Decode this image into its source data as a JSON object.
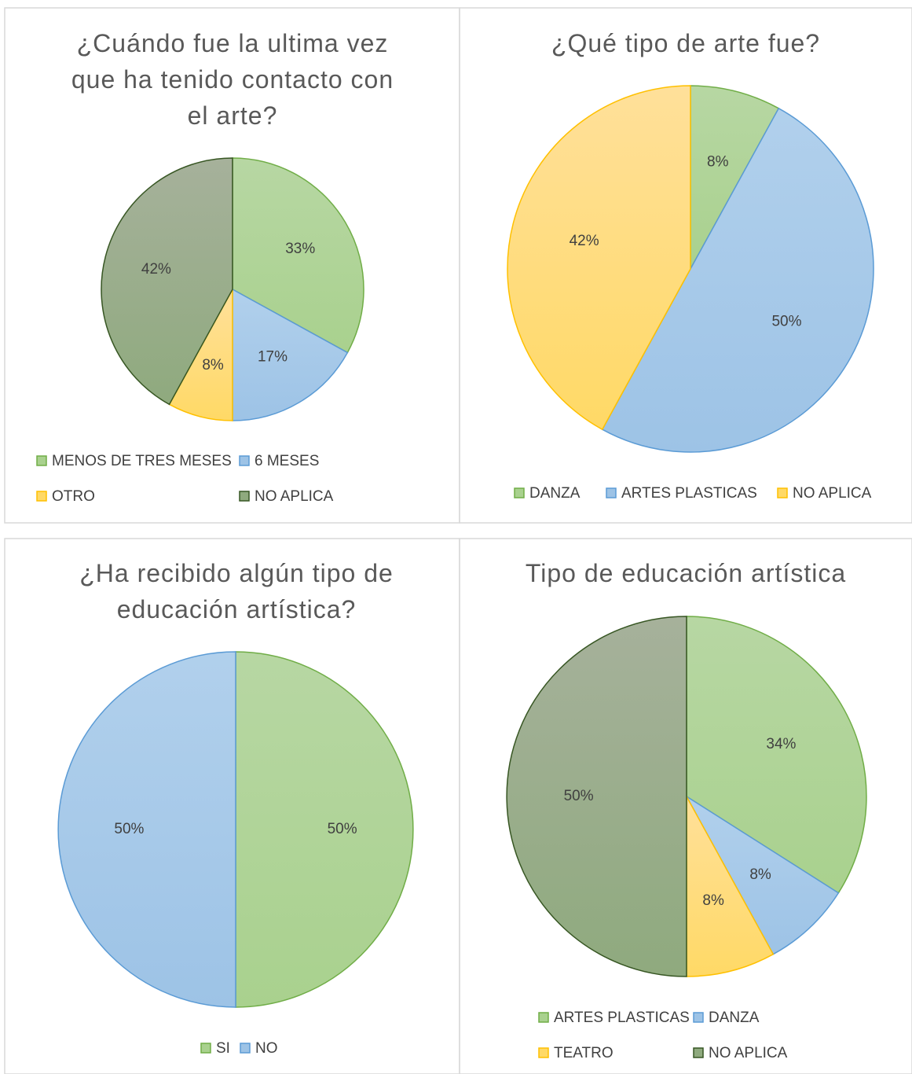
{
  "chart_data": [
    {
      "type": "pie",
      "title": "¿Cuándo fue la ultima vez que ha tenido contacto con el arte?",
      "categories": [
        "MENOS DE TRES MESES",
        "6 MESES",
        "OTRO",
        "NO APLICA"
      ],
      "values": [
        33,
        17,
        8,
        42
      ],
      "value_labels": [
        "33%",
        "17%",
        "8%",
        "42%"
      ],
      "colors": [
        "#a9d18e",
        "#9dc3e6",
        "#ffd966",
        "#8faa7e"
      ],
      "legend": "bottom"
    },
    {
      "type": "pie",
      "title": "¿Qué tipo de arte fue?",
      "categories": [
        "DANZA",
        "ARTES PLASTICAS",
        "NO APLICA"
      ],
      "values": [
        8,
        50,
        42
      ],
      "value_labels": [
        "8%",
        "50%",
        "42%"
      ],
      "colors": [
        "#a9d18e",
        "#9dc3e6",
        "#ffd966"
      ],
      "legend": "bottom"
    },
    {
      "type": "pie",
      "title": "¿Ha recibido algún tipo de educación artística?",
      "categories": [
        "SI",
        "NO"
      ],
      "values": [
        50,
        50
      ],
      "value_labels": [
        "50%",
        "50%"
      ],
      "colors": [
        "#a9d18e",
        "#9dc3e6"
      ],
      "legend": "bottom"
    },
    {
      "type": "pie",
      "title": "Tipo de educación artística",
      "categories": [
        "ARTES PLASTICAS",
        "DANZA",
        "TEATRO",
        "NO APLICA"
      ],
      "values": [
        34,
        8,
        8,
        50
      ],
      "value_labels": [
        "34%",
        "8%",
        "8%",
        "50%"
      ],
      "colors": [
        "#a9d18e",
        "#9dc3e6",
        "#ffd966",
        "#8faa7e"
      ],
      "legend": "bottom"
    }
  ]
}
